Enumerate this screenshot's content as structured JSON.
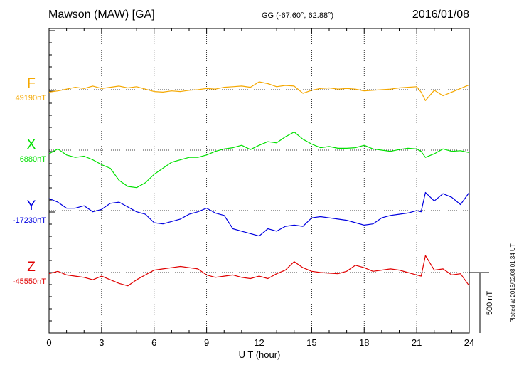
{
  "header": {
    "station": "Mawson (MAW)  [GA]",
    "coords": "GG (-67.60°,  62.88°)",
    "date": "2016/01/08"
  },
  "footer_note": "Plotted at 2016/02/08 01:34 UT",
  "scale_label": "500 nT",
  "colors": {
    "F": "#f5a800",
    "X": "#00e000",
    "Y": "#0000e0",
    "Z": "#e00000"
  },
  "chart_data": {
    "type": "line",
    "xlabel": "U T (hour)",
    "xlim": [
      0,
      24
    ],
    "x_ticks": [
      "0",
      "3",
      "6",
      "9",
      "12",
      "15",
      "18",
      "21",
      "24"
    ],
    "grid": "dotted vertical every 3 h, dotted baseline per component",
    "scale_bar_nT": 500,
    "series": [
      {
        "name": "F",
        "baseline_label": "49190nT",
        "x": [
          0,
          0.5,
          1,
          1.5,
          2,
          2.5,
          3,
          3.5,
          4,
          4.5,
          5,
          5.5,
          6,
          6.5,
          7,
          7.5,
          8,
          8.5,
          9,
          9.5,
          10,
          10.5,
          11,
          11.5,
          12,
          12.5,
          13,
          13.5,
          14,
          14.5,
          15,
          15.5,
          16,
          16.5,
          17,
          17.5,
          18,
          18.5,
          19,
          19.5,
          20,
          20.5,
          21,
          21.25,
          21.5,
          22,
          22.5,
          23,
          23.5,
          24
        ],
        "y": [
          -20,
          -10,
          5,
          20,
          10,
          30,
          10,
          20,
          30,
          15,
          25,
          5,
          -15,
          -20,
          -10,
          -15,
          -5,
          0,
          10,
          5,
          20,
          25,
          30,
          20,
          65,
          50,
          25,
          35,
          30,
          -30,
          -5,
          10,
          15,
          5,
          10,
          5,
          -10,
          -5,
          0,
          5,
          15,
          20,
          25,
          -20,
          -90,
          -5,
          -50,
          -20,
          10,
          40
        ]
      },
      {
        "name": "X",
        "baseline_label": "6880nT",
        "x": [
          0,
          0.5,
          1,
          1.5,
          2,
          2.5,
          3,
          3.5,
          4,
          4.5,
          5,
          5.5,
          6,
          6.5,
          7,
          7.5,
          8,
          8.5,
          9,
          9.5,
          10,
          10.5,
          11,
          11.5,
          12,
          12.5,
          13,
          13.5,
          14,
          14.5,
          15,
          15.5,
          16,
          16.5,
          17,
          17.5,
          18,
          18.5,
          19,
          19.5,
          20,
          20.5,
          21,
          21.25,
          21.5,
          22,
          22.5,
          23,
          23.5,
          24
        ],
        "y": [
          -30,
          10,
          -40,
          -60,
          -50,
          -80,
          -120,
          -150,
          -250,
          -300,
          -310,
          -270,
          -200,
          -150,
          -100,
          -80,
          -60,
          -60,
          -40,
          -10,
          10,
          20,
          40,
          5,
          40,
          70,
          60,
          110,
          150,
          90,
          50,
          20,
          30,
          15,
          15,
          20,
          40,
          10,
          0,
          -10,
          5,
          15,
          10,
          -10,
          -60,
          -30,
          10,
          -10,
          -5,
          -20
        ]
      },
      {
        "name": "Y",
        "baseline_label": "-17230nT",
        "x": [
          0,
          0.5,
          1,
          1.5,
          2,
          2.5,
          3,
          3.5,
          4,
          4.5,
          5,
          5.5,
          6,
          6.5,
          7,
          7.5,
          8,
          8.5,
          9,
          9.5,
          10,
          10.5,
          11,
          11.5,
          12,
          12.5,
          13,
          13.5,
          14,
          14.5,
          15,
          15.5,
          16,
          16.5,
          17,
          17.5,
          18,
          18.5,
          19,
          19.5,
          20,
          20.5,
          21,
          21.25,
          21.5,
          22,
          22.5,
          23,
          23.5,
          24
        ],
        "y": [
          100,
          70,
          20,
          20,
          40,
          -10,
          10,
          60,
          70,
          30,
          -10,
          -30,
          -100,
          -110,
          -90,
          -70,
          -30,
          -10,
          20,
          -20,
          -40,
          -150,
          -170,
          -190,
          -210,
          -150,
          -170,
          -130,
          -120,
          -130,
          -60,
          -50,
          -60,
          -70,
          -80,
          -100,
          -120,
          -110,
          -60,
          -40,
          -30,
          -20,
          0,
          -10,
          150,
          80,
          140,
          110,
          50,
          150
        ]
      },
      {
        "name": "Z",
        "baseline_label": "-45550nT",
        "x": [
          0,
          0.5,
          1,
          1.5,
          2,
          2.5,
          3,
          3.5,
          4,
          4.5,
          5,
          5.5,
          6,
          6.5,
          7,
          7.5,
          8,
          8.5,
          9,
          9.5,
          10,
          10.5,
          11,
          11.5,
          12,
          12.5,
          13,
          13.5,
          14,
          14.5,
          15,
          15.5,
          16,
          16.5,
          17,
          17.5,
          18,
          18.5,
          19,
          19.5,
          20,
          20.5,
          21,
          21.25,
          21.5,
          22,
          22.5,
          23,
          23.5,
          24
        ],
        "y": [
          -10,
          10,
          -20,
          -30,
          -40,
          -60,
          -30,
          -60,
          -90,
          -110,
          -60,
          -20,
          20,
          30,
          40,
          50,
          40,
          30,
          -20,
          -40,
          -30,
          -20,
          -40,
          -50,
          -30,
          -50,
          -10,
          20,
          90,
          40,
          10,
          0,
          -5,
          -10,
          10,
          60,
          40,
          10,
          20,
          30,
          20,
          0,
          -20,
          -30,
          140,
          20,
          30,
          -20,
          -10,
          -110
        ]
      }
    ]
  }
}
